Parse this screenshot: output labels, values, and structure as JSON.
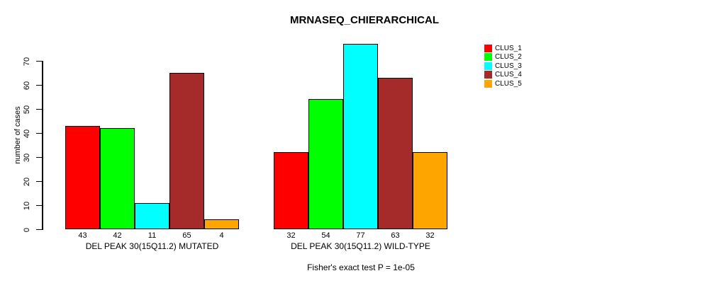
{
  "chart_data": {
    "type": "bar",
    "title": "MRNASEQ_CHIERARCHICAL",
    "ylabel": "number of cases",
    "xlabel": "",
    "ylim": [
      0,
      70
    ],
    "yticks": [
      0,
      10,
      20,
      30,
      40,
      50,
      60,
      70
    ],
    "grid": false,
    "series_names": [
      "CLUS_1",
      "CLUS_2",
      "CLUS_3",
      "CLUS_4",
      "CLUS_5"
    ],
    "colors": [
      "#ff0000",
      "#00ff00",
      "#00ffff",
      "#a52a2a",
      "#ffa500"
    ],
    "groups": [
      {
        "label": "DEL PEAK 30(15Q11.2) MUTATED",
        "values": [
          43,
          42,
          11,
          65,
          4
        ]
      },
      {
        "label": "DEL PEAK 30(15Q11.2) WILD-TYPE",
        "values": [
          32,
          54,
          77,
          63,
          32
        ]
      }
    ],
    "legend": {
      "position": "right",
      "entries": [
        {
          "label": "CLUS_1",
          "color": "#ff0000"
        },
        {
          "label": "CLUS_2",
          "color": "#00ff00"
        },
        {
          "label": "CLUS_3",
          "color": "#00ffff"
        },
        {
          "label": "CLUS_4",
          "color": "#a52a2a"
        },
        {
          "label": "CLUS_5",
          "color": "#ffa500"
        }
      ]
    },
    "footer": "Fisher's exact test P = 1e-05"
  }
}
